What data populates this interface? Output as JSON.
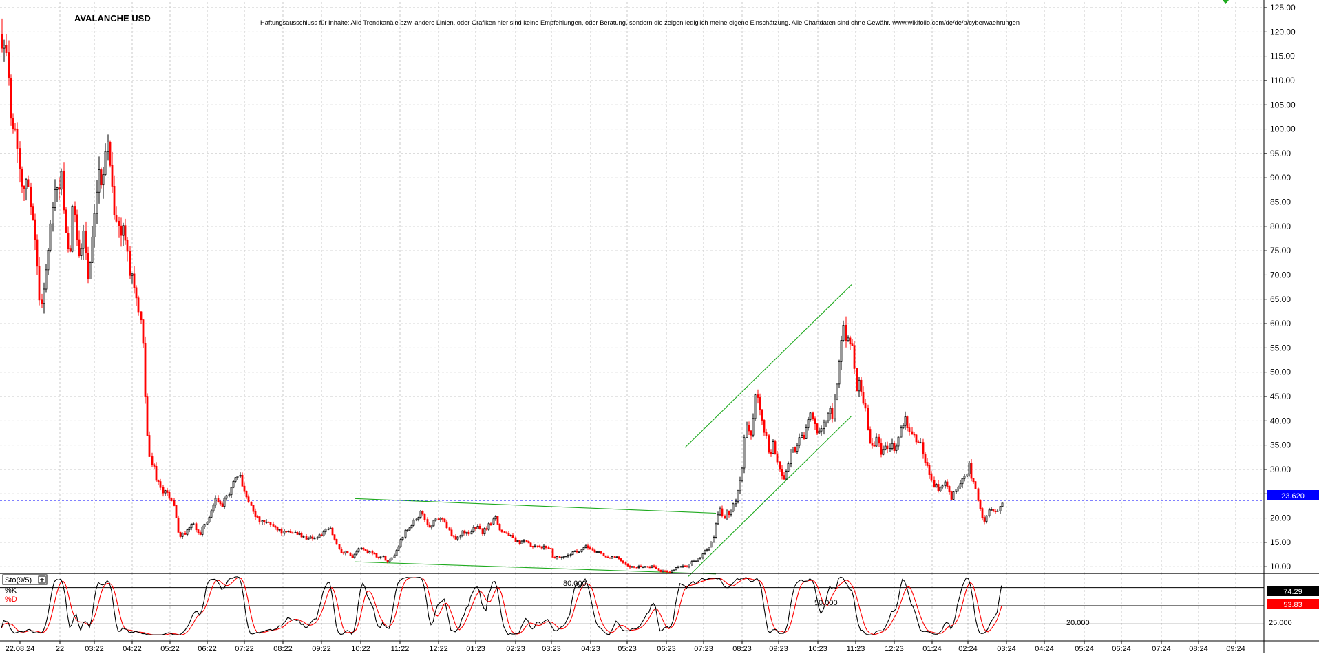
{
  "chart_title": "AVALANCHE USD",
  "disclaimer": "Haftungsausschluss für Inhalte: Alle Trendkanäle bzw. andere Linien, oder Grafiken hier sind keine Empfehlungen, oder Beratung, sondern die zeigen lediglich meine eigene Einschätzung. Alle Chartdaten sind ohne Gewähr.  www.wikifolio.com/de/de/p/cyberwaehrungen",
  "colors": {
    "up": "#000000",
    "down": "#ff0000",
    "grid": "#c8c8c8",
    "trend": "#1faa1f",
    "price_line": "#0000ff",
    "k_line": "#000000",
    "d_line": "#ff0000"
  },
  "chart_data": [
    {
      "type": "candlestick",
      "title": "AVALANCHE USD",
      "y_scale": "linear",
      "ylim": [
        5,
        126
      ],
      "y_ticks": [
        "125.00",
        "120.00",
        "115.00",
        "110.00",
        "105.00",
        "100.00",
        "95.00",
        "90.00",
        "85.00",
        "80.00",
        "75.00",
        "70.00",
        "65.00",
        "60.00",
        "55.00",
        "50.00",
        "45.00",
        "40.00",
        "35.00",
        "30.00",
        "25.00",
        "20.00",
        "15.00",
        "10.00"
      ],
      "x_ticks": [
        "22.08.24",
        "22",
        "03:22",
        "04:22",
        "05:22",
        "06:22",
        "07:22",
        "08:22",
        "09:22",
        "10:22",
        "11:22",
        "12:22",
        "01:23",
        "02:23",
        "03:23",
        "04:23",
        "05:23",
        "06:23",
        "07:23",
        "08:23",
        "09:23",
        "10:23",
        "11:23",
        "12:23",
        "01:24",
        "02:24",
        "03:24",
        "04:24",
        "05:24",
        "06:24",
        "07:24",
        "08:24",
        "09:24"
      ],
      "last_price": "23.620",
      "grid": true,
      "price_path": [
        [
          0,
          118
        ],
        [
          4,
          121
        ],
        [
          8,
          114
        ],
        [
          12,
          109
        ],
        [
          16,
          103
        ],
        [
          20,
          100
        ],
        [
          24,
          98
        ],
        [
          28,
          92
        ],
        [
          32,
          88
        ],
        [
          36,
          91
        ],
        [
          40,
          87
        ],
        [
          44,
          84
        ],
        [
          48,
          82
        ],
        [
          52,
          75
        ],
        [
          55,
          66
        ],
        [
          58,
          62
        ],
        [
          61,
          67
        ],
        [
          64,
          69
        ],
        [
          67,
          72
        ],
        [
          70,
          76
        ],
        [
          73,
          80
        ],
        [
          76,
          84
        ],
        [
          79,
          88
        ],
        [
          82,
          86
        ],
        [
          85,
          89
        ],
        [
          88,
          92
        ],
        [
          91,
          83
        ],
        [
          94,
          78
        ],
        [
          97,
          75
        ],
        [
          100,
          73
        ],
        [
          103,
          80
        ],
        [
          106,
          85
        ],
        [
          109,
          81
        ],
        [
          112,
          78
        ],
        [
          115,
          73
        ],
        [
          118,
          76
        ],
        [
          121,
          80
        ],
        [
          124,
          74
        ],
        [
          127,
          69
        ],
        [
          130,
          72
        ],
        [
          133,
          76
        ],
        [
          136,
          80
        ],
        [
          139,
          86
        ],
        [
          142,
          90
        ],
        [
          145,
          88
        ],
        [
          148,
          91
        ],
        [
          151,
          95
        ],
        [
          154,
          97
        ],
        [
          157,
          96
        ],
        [
          160,
          92
        ],
        [
          163,
          87
        ],
        [
          166,
          83
        ],
        [
          169,
          81
        ],
        [
          172,
          79
        ],
        [
          175,
          78
        ],
        [
          178,
          80
        ],
        [
          181,
          76
        ],
        [
          184,
          77
        ],
        [
          187,
          72
        ],
        [
          190,
          70
        ],
        [
          193,
          69
        ],
        [
          196,
          66
        ],
        [
          199,
          63
        ],
        [
          202,
          61
        ],
        [
          205,
          58
        ],
        [
          207,
          55
        ],
        [
          209,
          49
        ],
        [
          212,
          40
        ],
        [
          215,
          33
        ],
        [
          218,
          31
        ],
        [
          221,
          32
        ],
        [
          224,
          29
        ],
        [
          227,
          28
        ],
        [
          230,
          27
        ],
        [
          233,
          26
        ],
        [
          236,
          25
        ],
        [
          240,
          26
        ],
        [
          244,
          24
        ],
        [
          248,
          23
        ],
        [
          252,
          23
        ],
        [
          258,
          17
        ],
        [
          262,
          16
        ],
        [
          266,
          17
        ],
        [
          270,
          17
        ],
        [
          274,
          18
        ],
        [
          278,
          19
        ],
        [
          282,
          18
        ],
        [
          286,
          17
        ],
        [
          290,
          17
        ],
        [
          294,
          18
        ],
        [
          298,
          19
        ],
        [
          302,
          20
        ],
        [
          306,
          21
        ],
        [
          310,
          23
        ],
        [
          314,
          24
        ],
        [
          318,
          23
        ],
        [
          322,
          22
        ],
        [
          326,
          24
        ],
        [
          330,
          25
        ],
        [
          334,
          26
        ],
        [
          338,
          27
        ],
        [
          342,
          28
        ],
        [
          346,
          29
        ],
        [
          350,
          27
        ],
        [
          354,
          26
        ],
        [
          358,
          24
        ],
        [
          362,
          23
        ],
        [
          366,
          22
        ],
        [
          372,
          20
        ],
        [
          380,
          19
        ],
        [
          390,
          19
        ],
        [
          400,
          18
        ],
        [
          410,
          17
        ],
        [
          420,
          17
        ],
        [
          430,
          17
        ],
        [
          440,
          16
        ],
        [
          450,
          16
        ],
        [
          460,
          16
        ],
        [
          470,
          17
        ],
        [
          478,
          18
        ],
        [
          484,
          16
        ],
        [
          490,
          14
        ],
        [
          496,
          13
        ],
        [
          500,
          13
        ],
        [
          504,
          13
        ],
        [
          510,
          12
        ],
        [
          516,
          13
        ],
        [
          524,
          14
        ],
        [
          532,
          13
        ],
        [
          540,
          13
        ],
        [
          548,
          12
        ],
        [
          556,
          12
        ],
        [
          562,
          11
        ],
        [
          568,
          12
        ],
        [
          574,
          13
        ],
        [
          580,
          15
        ],
        [
          586,
          17
        ],
        [
          592,
          18
        ],
        [
          598,
          19
        ],
        [
          604,
          20
        ],
        [
          610,
          21
        ],
        [
          616,
          20
        ],
        [
          622,
          18
        ],
        [
          628,
          19
        ],
        [
          634,
          20
        ],
        [
          640,
          20
        ],
        [
          646,
          19
        ],
        [
          652,
          17
        ],
        [
          658,
          16
        ],
        [
          664,
          16
        ],
        [
          670,
          17
        ],
        [
          676,
          17
        ],
        [
          682,
          17
        ],
        [
          688,
          18
        ],
        [
          694,
          18
        ],
        [
          700,
          17
        ],
        [
          706,
          18
        ],
        [
          712,
          19
        ],
        [
          718,
          21
        ],
        [
          724,
          18
        ],
        [
          730,
          17
        ],
        [
          736,
          17
        ],
        [
          742,
          16
        ],
        [
          748,
          15
        ],
        [
          756,
          15
        ],
        [
          764,
          15
        ],
        [
          772,
          14
        ],
        [
          780,
          14
        ],
        [
          790,
          14
        ],
        [
          798,
          14
        ],
        [
          802,
          12
        ],
        [
          810,
          12
        ],
        [
          820,
          12
        ],
        [
          830,
          13
        ],
        [
          840,
          13
        ],
        [
          850,
          14
        ],
        [
          856,
          14
        ],
        [
          862,
          13
        ],
        [
          870,
          13
        ],
        [
          878,
          12
        ],
        [
          886,
          12
        ],
        [
          894,
          12
        ],
        [
          902,
          11
        ],
        [
          910,
          10
        ],
        [
          918,
          10
        ],
        [
          926,
          10
        ],
        [
          934,
          10
        ],
        [
          942,
          10
        ],
        [
          950,
          10
        ],
        [
          958,
          9
        ],
        [
          966,
          9
        ],
        [
          974,
          9
        ],
        [
          982,
          10
        ],
        [
          990,
          10
        ],
        [
          998,
          10
        ],
        [
          1004,
          11
        ],
        [
          1010,
          11
        ],
        [
          1016,
          12
        ],
        [
          1022,
          13
        ],
        [
          1028,
          14
        ],
        [
          1034,
          15
        ],
        [
          1038,
          18
        ],
        [
          1042,
          21
        ],
        [
          1046,
          22
        ],
        [
          1050,
          20
        ],
        [
          1054,
          21
        ],
        [
          1058,
          21
        ],
        [
          1062,
          22
        ],
        [
          1066,
          23
        ],
        [
          1070,
          25
        ],
        [
          1074,
          28
        ],
        [
          1078,
          31
        ],
        [
          1080,
          35
        ],
        [
          1083,
          40
        ],
        [
          1086,
          38
        ],
        [
          1089,
          35
        ],
        [
          1092,
          39
        ],
        [
          1095,
          44
        ],
        [
          1098,
          46
        ],
        [
          1101,
          43
        ],
        [
          1104,
          41
        ],
        [
          1107,
          40
        ],
        [
          1110,
          37
        ],
        [
          1113,
          36
        ],
        [
          1116,
          34
        ],
        [
          1119,
          33
        ],
        [
          1122,
          35
        ],
        [
          1125,
          33
        ],
        [
          1128,
          32
        ],
        [
          1131,
          30
        ],
        [
          1134,
          29
        ],
        [
          1137,
          28
        ],
        [
          1140,
          29
        ],
        [
          1143,
          31
        ],
        [
          1146,
          33
        ],
        [
          1149,
          34
        ],
        [
          1152,
          35
        ],
        [
          1155,
          34
        ],
        [
          1158,
          35
        ],
        [
          1161,
          36
        ],
        [
          1164,
          38
        ],
        [
          1167,
          37
        ],
        [
          1170,
          39
        ],
        [
          1173,
          40
        ],
        [
          1176,
          41
        ],
        [
          1179,
          40
        ],
        [
          1182,
          39
        ],
        [
          1185,
          38
        ],
        [
          1188,
          37
        ],
        [
          1191,
          38
        ],
        [
          1194,
          40
        ],
        [
          1197,
          41
        ],
        [
          1200,
          40
        ],
        [
          1203,
          41
        ],
        [
          1206,
          43
        ],
        [
          1209,
          40
        ],
        [
          1212,
          45
        ],
        [
          1215,
          48
        ],
        [
          1218,
          52
        ],
        [
          1221,
          57
        ],
        [
          1224,
          59
        ],
        [
          1227,
          58
        ],
        [
          1230,
          57
        ],
        [
          1233,
          56
        ],
        [
          1236,
          55
        ],
        [
          1239,
          54
        ],
        [
          1242,
          46
        ],
        [
          1245,
          47
        ],
        [
          1248,
          48
        ],
        [
          1251,
          46
        ],
        [
          1254,
          44
        ],
        [
          1257,
          42
        ],
        [
          1260,
          38
        ],
        [
          1263,
          36
        ],
        [
          1266,
          35
        ],
        [
          1269,
          34
        ],
        [
          1272,
          37
        ],
        [
          1275,
          35
        ],
        [
          1278,
          33
        ],
        [
          1281,
          34
        ],
        [
          1284,
          35
        ],
        [
          1287,
          36
        ],
        [
          1290,
          34
        ],
        [
          1293,
          36
        ],
        [
          1296,
          35
        ],
        [
          1299,
          34
        ],
        [
          1302,
          35
        ],
        [
          1305,
          37
        ],
        [
          1308,
          38
        ],
        [
          1311,
          39
        ],
        [
          1314,
          41
        ],
        [
          1317,
          39
        ],
        [
          1320,
          38
        ],
        [
          1323,
          37
        ],
        [
          1326,
          36
        ],
        [
          1329,
          37
        ],
        [
          1332,
          35
        ],
        [
          1335,
          36
        ],
        [
          1338,
          34
        ],
        [
          1341,
          33
        ],
        [
          1344,
          31
        ],
        [
          1347,
          30
        ],
        [
          1350,
          28
        ],
        [
          1353,
          27
        ],
        [
          1356,
          26
        ],
        [
          1359,
          27
        ],
        [
          1362,
          26
        ],
        [
          1365,
          27
        ],
        [
          1368,
          26
        ],
        [
          1371,
          28
        ],
        [
          1374,
          27
        ],
        [
          1377,
          26
        ],
        [
          1380,
          24
        ],
        [
          1383,
          24
        ],
        [
          1386,
          26
        ],
        [
          1389,
          25
        ],
        [
          1392,
          27
        ],
        [
          1395,
          28
        ],
        [
          1398,
          29
        ],
        [
          1401,
          28
        ],
        [
          1404,
          30
        ],
        [
          1407,
          31
        ],
        [
          1410,
          28
        ],
        [
          1413,
          27
        ],
        [
          1416,
          26
        ],
        [
          1419,
          24
        ],
        [
          1422,
          23
        ],
        [
          1425,
          21
        ],
        [
          1428,
          19
        ],
        [
          1431,
          20
        ],
        [
          1434,
          21
        ],
        [
          1437,
          22
        ],
        [
          1440,
          21
        ],
        [
          1443,
          21
        ],
        [
          1446,
          22
        ],
        [
          1449,
          22
        ],
        [
          1452,
          22
        ],
        [
          1455,
          23
        ],
        [
          1458,
          24
        ]
      ],
      "trendlines": [
        {
          "x1": 515,
          "y1": 24.0,
          "x2": 1040,
          "y2": 21.0
        },
        {
          "x1": 515,
          "y1": 11.0,
          "x2": 1040,
          "y2": 8.5
        },
        {
          "x1": 995,
          "y1": 34.5,
          "x2": 1237,
          "y2": 68.0
        },
        {
          "x1": 1000,
          "y1": 8.0,
          "x2": 1237,
          "y2": 41.0
        }
      ],
      "horizontal_line": 23.62
    },
    {
      "type": "line",
      "title": "Sto(9/5)",
      "series": [
        {
          "name": "%K",
          "value_label": "74.29"
        },
        {
          "name": "%D",
          "value_label": "53.83"
        }
      ],
      "levels": [
        "80.000",
        "50.000",
        "20.000"
      ],
      "axis_label": "25.000",
      "ylim": [
        0,
        100
      ]
    }
  ]
}
